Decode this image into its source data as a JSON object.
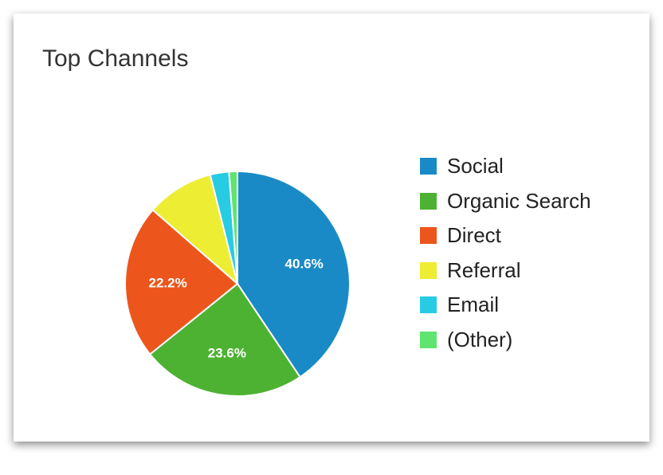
{
  "chart_data": {
    "type": "pie",
    "title": "Top Channels",
    "categories": [
      "Social",
      "Organic Search",
      "Direct",
      "Referral",
      "Email",
      "(Other)"
    ],
    "values": [
      40.6,
      23.6,
      22.2,
      9.7,
      2.7,
      1.2
    ],
    "data_labels": [
      "40.6%",
      "23.6%",
      "22.2%",
      "",
      "",
      ""
    ],
    "colors": [
      "#1a8ac6",
      "#4db232",
      "#ec561c",
      "#eded33",
      "#27cbe3",
      "#5fe46f"
    ],
    "legend_position": "right"
  }
}
